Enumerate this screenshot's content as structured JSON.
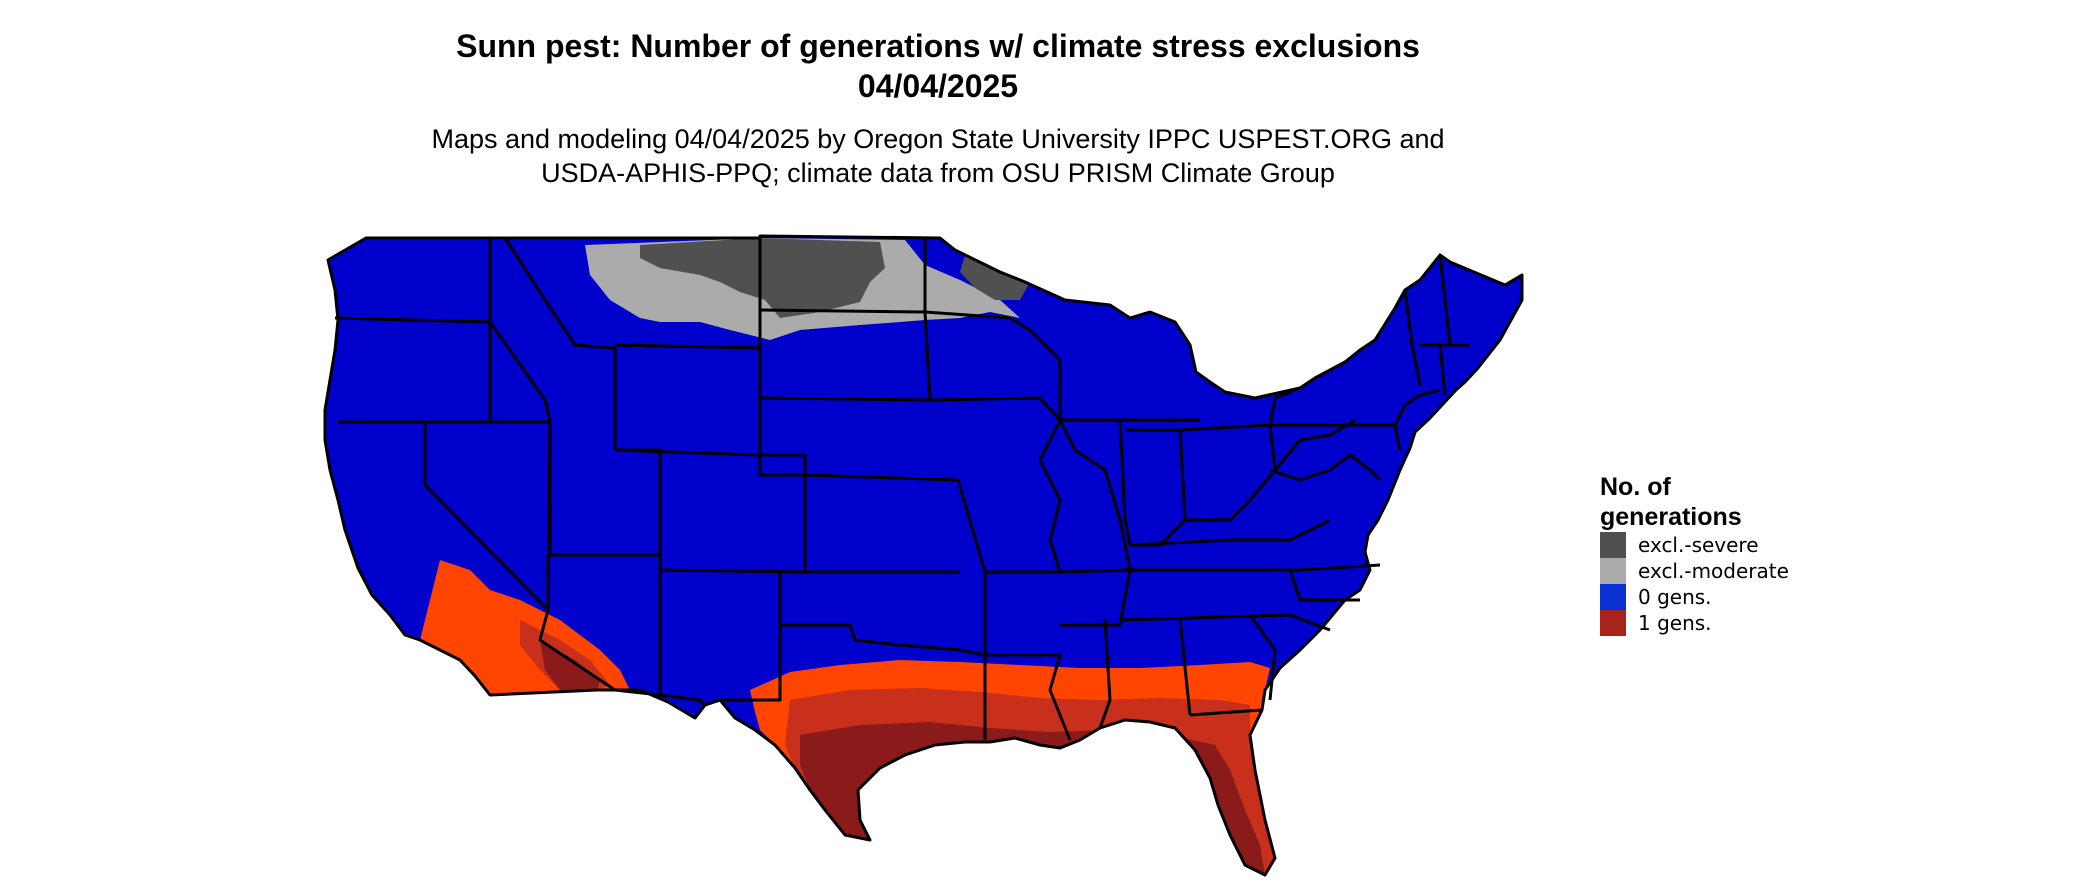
{
  "title_line1": "Sunn pest: Number of generations w/ climate stress exclusions",
  "title_line2": "04/04/2025",
  "subtitle_line1": "Maps and modeling 04/04/2025 by Oregon State University IPPC USPEST.ORG and",
  "subtitle_line2": "USDA-APHIS-PPQ; climate data from OSU PRISM Climate Group",
  "legend": {
    "title": "No. of generations",
    "items": [
      {
        "label": "excl.-severe",
        "color": "#505050"
      },
      {
        "label": "excl.-moderate",
        "color": "#ababab"
      },
      {
        "label": "0 gens.",
        "color": "#0a32d2"
      },
      {
        "label": "1 gens.",
        "color": "#a8241a"
      }
    ]
  },
  "colors": {
    "zero_gens_map": "#0000cc",
    "one_gens_orange": "#ff4500",
    "one_gens_mid": "#d9361a",
    "one_gens_dark": "#8b1a1a",
    "state_border": "#000000"
  }
}
